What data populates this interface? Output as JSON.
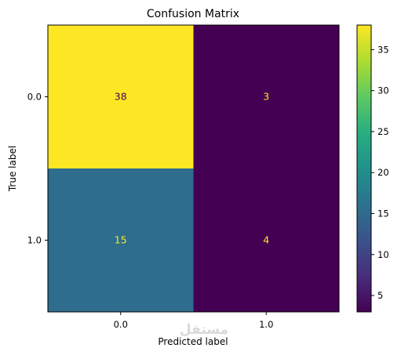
{
  "chart_data": {
    "type": "heatmap",
    "title": "Confusion Matrix",
    "xlabel": "Predicted label",
    "ylabel": "True label",
    "x_categories": [
      "0.0",
      "1.0"
    ],
    "y_categories": [
      "0.0",
      "1.0"
    ],
    "matrix": [
      [
        38,
        3
      ],
      [
        15,
        4
      ]
    ],
    "colormap": "viridis",
    "vmin": 3,
    "vmax": 38,
    "colorbar_ticks": [
      "5",
      "10",
      "15",
      "20",
      "25",
      "30",
      "35"
    ],
    "cell_colors": [
      [
        "#fde725",
        "#440154"
      ],
      [
        "#2e6d8e",
        "#440154"
      ]
    ],
    "cell_text_colors": [
      [
        "#440154",
        "#fde725"
      ],
      [
        "#fde725",
        "#fde725"
      ]
    ]
  },
  "watermark": "مستقل"
}
